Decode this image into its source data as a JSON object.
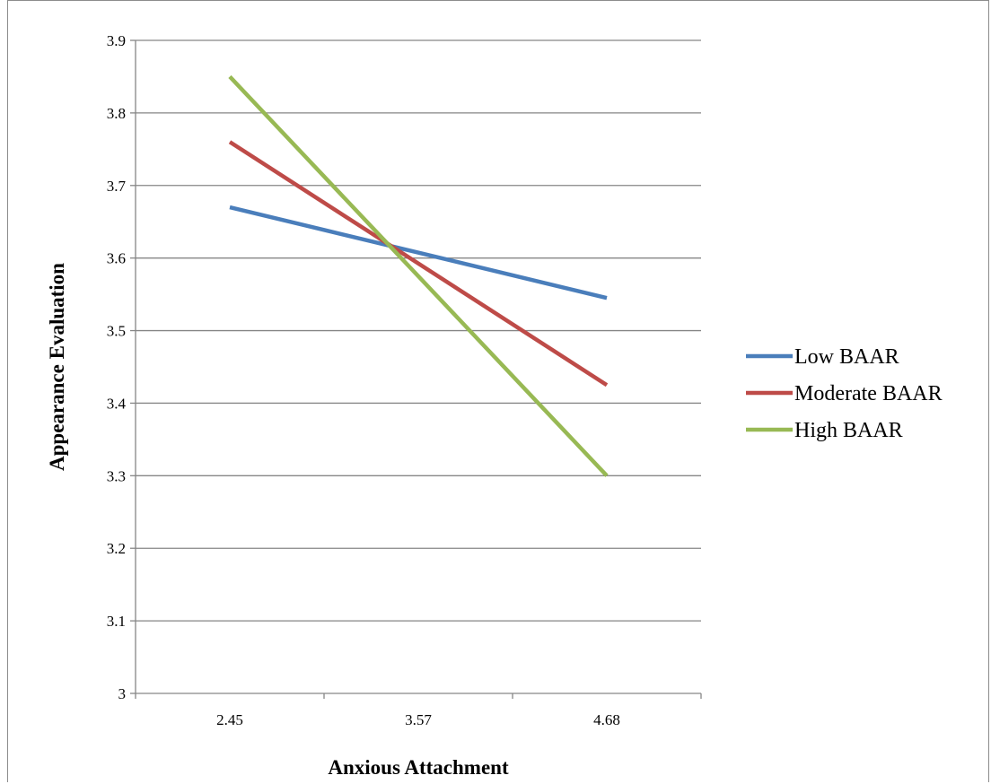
{
  "chart_data": {
    "type": "line",
    "title": "",
    "xlabel": "Anxious Attachment",
    "ylabel": "Appearance Evaluation",
    "categories": [
      "2.45",
      "3.57",
      "4.68"
    ],
    "ylim": [
      3,
      3.9
    ],
    "yticks": [
      "3",
      "3.1",
      "3.2",
      "3.3",
      "3.4",
      "3.5",
      "3.6",
      "3.7",
      "3.8",
      "3.9"
    ],
    "grid": true,
    "legend_position": "right",
    "series": [
      {
        "name": "Low BAAR",
        "color": "#4a7ebb",
        "values": [
          3.67,
          null,
          3.545
        ]
      },
      {
        "name": "Moderate BAAR",
        "color": "#be4b48",
        "values": [
          3.76,
          null,
          3.425
        ]
      },
      {
        "name": "High BAAR",
        "color": "#98b954",
        "values": [
          3.85,
          null,
          3.3
        ]
      }
    ]
  }
}
